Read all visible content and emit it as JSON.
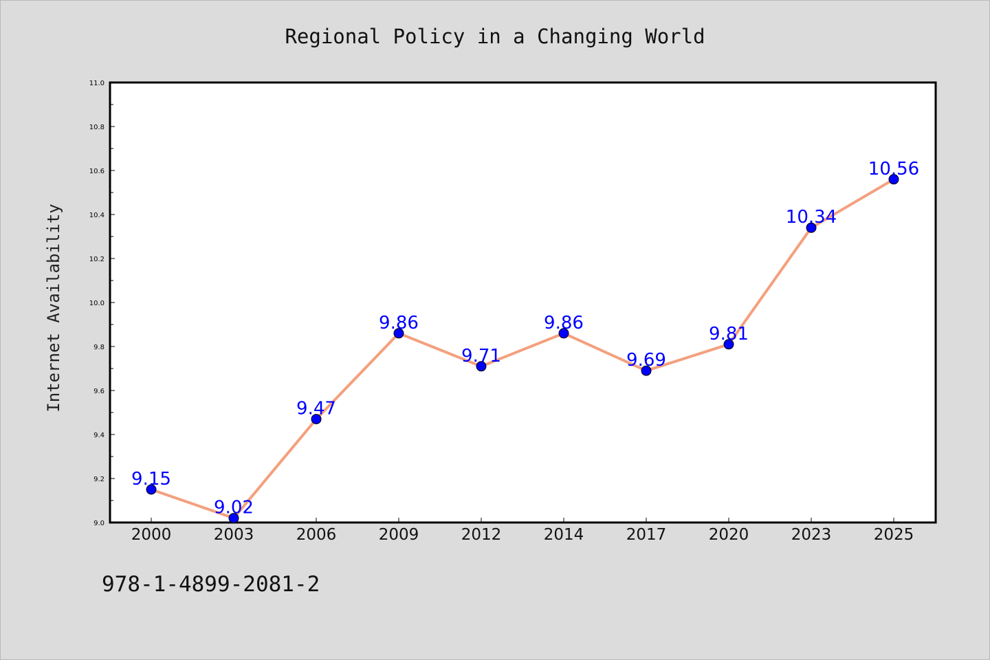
{
  "chart_data": {
    "type": "line",
    "title": "Regional Policy in a Changing World",
    "xlabel": "",
    "ylabel": "Internet Availability",
    "categories": [
      "2000",
      "2003",
      "2006",
      "2009",
      "2012",
      "2014",
      "2017",
      "2020",
      "2023",
      "2025"
    ],
    "series": [
      {
        "values": [
          9.15,
          9.02,
          9.47,
          9.86,
          9.71,
          9.86,
          9.69,
          9.81,
          10.34,
          10.56
        ],
        "data_labels": [
          "9.15",
          "9.02",
          "9.47",
          "9.86",
          "9.71",
          "9.86",
          "9.69",
          "9.81",
          "10.34",
          "10.56"
        ]
      }
    ],
    "ylim": [
      9.0,
      11.0
    ],
    "yticks": [
      "9.0",
      "9.2",
      "9.4",
      "9.6",
      "9.8",
      "10.0",
      "10.2",
      "10.4",
      "10.6",
      "10.8",
      "11.0"
    ],
    "grid": false,
    "colors": {
      "line": "#f4a07e",
      "marker": "#0000ff",
      "data_label": "#0000ff",
      "background": "#dcdcdc",
      "plot_background": "#ffffff"
    }
  },
  "footer": {
    "isbn": "978-1-4899-2081-2"
  }
}
